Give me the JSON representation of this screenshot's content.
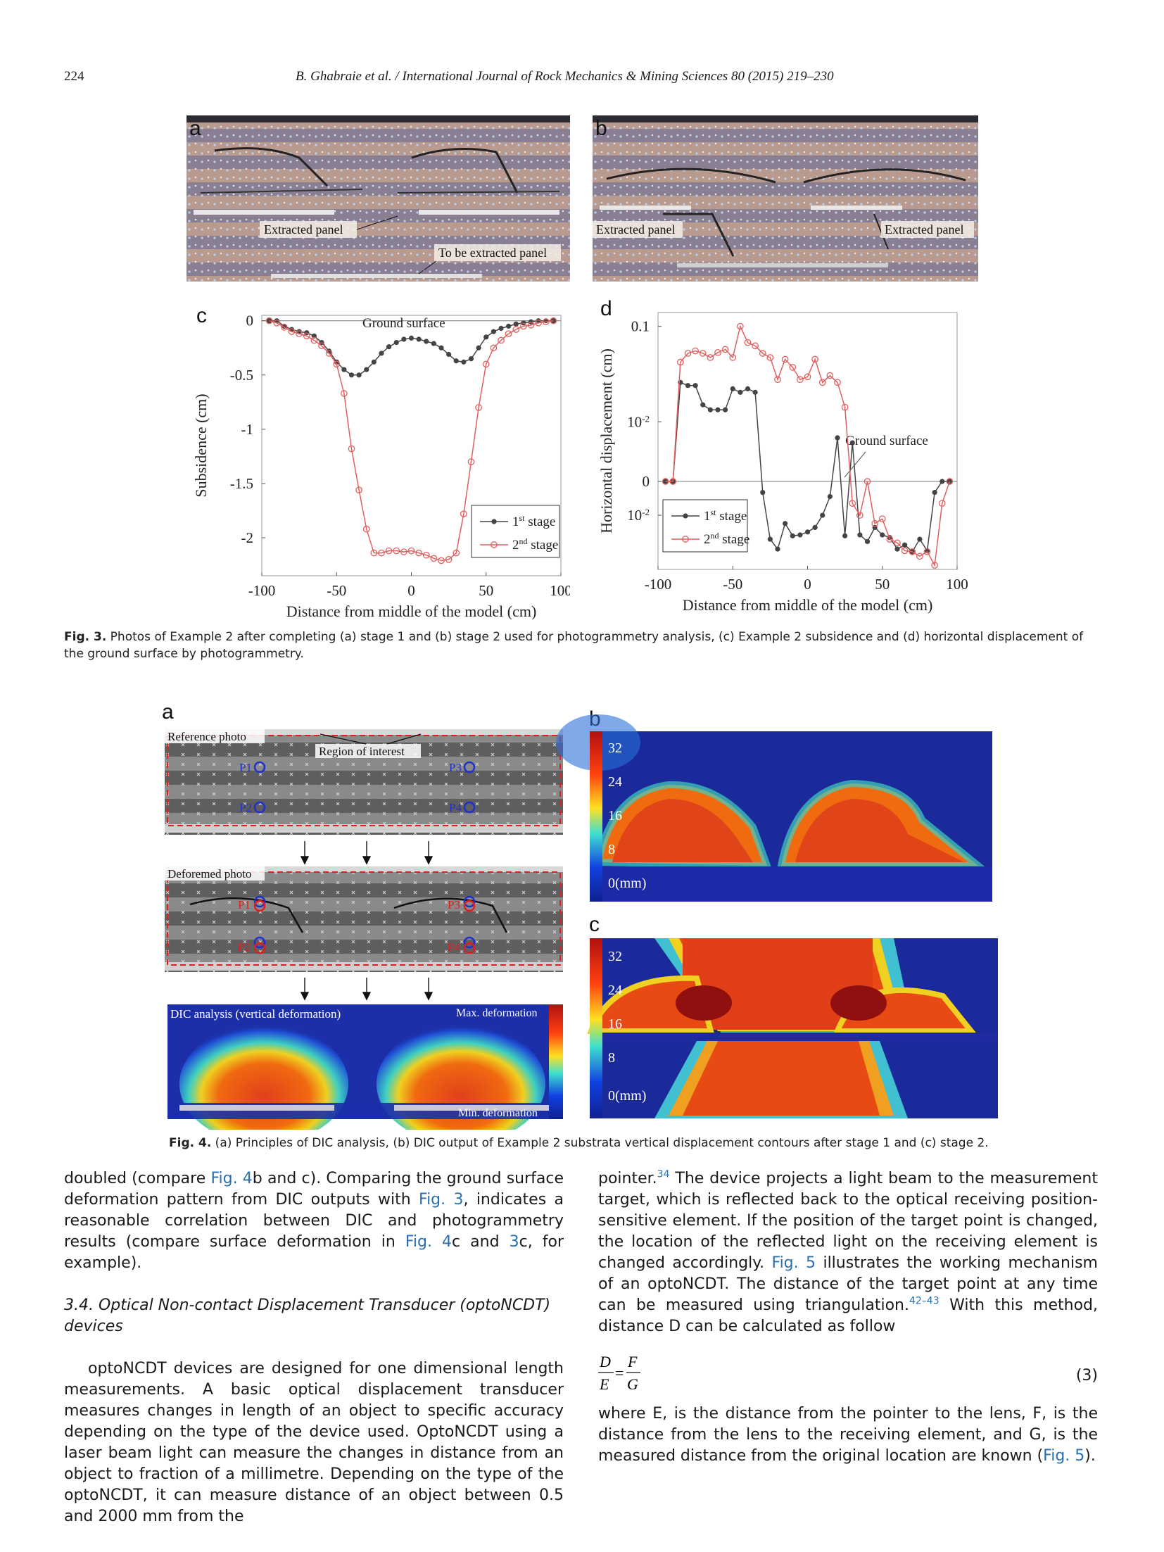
{
  "header": {
    "page_number": "224",
    "citation": "B. Ghabraie et al. / International Journal of Rock Mechanics & Mining Sciences 80 (2015) 219–230"
  },
  "fig3": {
    "photo_a": {
      "letter": "a",
      "label_extracted": "Extracted panel",
      "label_to_be": "To be extracted panel"
    },
    "photo_b": {
      "letter": "b",
      "label_left": "Extracted panel",
      "label_right": "Extracted panel"
    },
    "caption_bold": "Fig. 3.",
    "caption_text": " Photos of Example 2 after completing (a) stage 1 and (b) stage 2 used for photogrammetry analysis, (c) Example 2 subsidence and (d) horizontal displacement of the ground surface by photogrammetry."
  },
  "chart_data": [
    {
      "type": "line",
      "panel": "c",
      "xlabel": "Distance from middle of the model (cm)",
      "ylabel": "Subsidence (cm)",
      "xlim": [
        -100,
        100
      ],
      "ylim": [
        -2.35,
        0.05
      ],
      "xticks": [
        "-100",
        "-50",
        "0",
        "50",
        "100"
      ],
      "yticks": [
        "0",
        "-0.5",
        "-1",
        "-1.5",
        "-2"
      ],
      "annotation": "Ground surface",
      "legend": "bottom-right",
      "series": [
        {
          "name": "1st stage",
          "color": "#444444",
          "marker": "filled-circle",
          "x": [
            -95,
            -90,
            -85,
            -80,
            -75,
            -70,
            -65,
            -60,
            -55,
            -50,
            -45,
            -40,
            -35,
            -30,
            -25,
            -20,
            -15,
            -10,
            -5,
            0,
            5,
            10,
            15,
            20,
            25,
            30,
            35,
            40,
            45,
            50,
            55,
            60,
            65,
            70,
            75,
            80,
            85,
            90,
            95
          ],
          "y": [
            0,
            0,
            -0.05,
            -0.08,
            -0.1,
            -0.11,
            -0.14,
            -0.2,
            -0.28,
            -0.38,
            -0.45,
            -0.5,
            -0.5,
            -0.45,
            -0.38,
            -0.3,
            -0.24,
            -0.2,
            -0.17,
            -0.16,
            -0.17,
            -0.19,
            -0.21,
            -0.25,
            -0.31,
            -0.37,
            -0.38,
            -0.35,
            -0.25,
            -0.15,
            -0.1,
            -0.07,
            -0.05,
            -0.03,
            -0.02,
            -0.01,
            0,
            0,
            0
          ]
        },
        {
          "name": "2nd stage",
          "color": "#e06060",
          "marker": "open-circle",
          "x": [
            -95,
            -90,
            -85,
            -80,
            -75,
            -70,
            -65,
            -60,
            -55,
            -50,
            -45,
            -40,
            -35,
            -30,
            -25,
            -20,
            -15,
            -10,
            -5,
            0,
            5,
            10,
            15,
            20,
            25,
            30,
            35,
            40,
            45,
            50,
            55,
            60,
            65,
            70,
            75,
            80,
            85,
            90,
            95
          ],
          "y": [
            0,
            -0.02,
            -0.06,
            -0.1,
            -0.12,
            -0.14,
            -0.18,
            -0.23,
            -0.3,
            -0.4,
            -0.67,
            -1.18,
            -1.56,
            -1.92,
            -2.14,
            -2.14,
            -2.12,
            -2.12,
            -2.13,
            -2.12,
            -2.14,
            -2.16,
            -2.19,
            -2.21,
            -2.2,
            -2.14,
            -1.78,
            -1.3,
            -0.8,
            -0.4,
            -0.25,
            -0.18,
            -0.12,
            -0.08,
            -0.05,
            -0.04,
            -0.02,
            -0.01,
            0
          ]
        }
      ]
    },
    {
      "type": "line",
      "panel": "d",
      "xlabel": "Distance from middle of the model (cm)",
      "ylabel": "Horizontal displacement (cm)",
      "xlim": [
        -100,
        100
      ],
      "ylim": [
        -0.1,
        0.135
      ],
      "yscale": "symlog",
      "yticks": [
        "0.1",
        "10-2",
        "0",
        "10-2"
      ],
      "annotation": "Ground surface",
      "legend": "bottom-left",
      "series": [
        {
          "name": "1st stage",
          "color": "#444444",
          "marker": "filled-circle",
          "x": [
            -95,
            -90,
            -85,
            -80,
            -75,
            -70,
            -65,
            -60,
            -55,
            -50,
            -45,
            -40,
            -35,
            -30,
            -25,
            -20,
            -15,
            -10,
            -5,
            0,
            5,
            10,
            15,
            20,
            25,
            30,
            35,
            40,
            45,
            50,
            55,
            60,
            65,
            70,
            75,
            80,
            85,
            90,
            95
          ],
          "y": [
            0,
            0,
            0.028,
            0.026,
            0.026,
            0.016,
            0.014,
            0.014,
            0.014,
            0.024,
            0.022,
            0.024,
            0.022,
            -0.002,
            -0.03,
            -0.045,
            -0.015,
            -0.026,
            -0.025,
            -0.022,
            -0.018,
            -0.01,
            -0.003,
            0.006,
            -0.026,
            0.005,
            -0.025,
            -0.033,
            -0.018,
            -0.025,
            -0.028,
            -0.045,
            -0.038,
            -0.05,
            -0.03,
            -0.048,
            -0.002,
            0,
            0
          ]
        },
        {
          "name": "2nd stage",
          "color": "#e06060",
          "marker": "open-circle",
          "x": [
            -95,
            -90,
            -85,
            -80,
            -75,
            -70,
            -65,
            -60,
            -55,
            -50,
            -45,
            -40,
            -35,
            -30,
            -25,
            -20,
            -15,
            -10,
            -5,
            0,
            5,
            10,
            15,
            20,
            25,
            30,
            35,
            40,
            45,
            50,
            55,
            60,
            65,
            70,
            75,
            80,
            85,
            90,
            95
          ],
          "y": [
            0,
            0,
            0.045,
            0.055,
            0.058,
            0.055,
            0.05,
            0.056,
            0.06,
            0.05,
            0.1,
            0.07,
            0.065,
            0.055,
            0.05,
            0.03,
            0.048,
            0.04,
            0.03,
            0.032,
            0.048,
            0.028,
            0.033,
            0.028,
            0.015,
            -0.005,
            -0.01,
            0,
            -0.015,
            -0.012,
            -0.03,
            -0.035,
            -0.048,
            -0.05,
            -0.06,
            -0.05,
            -0.085,
            -0.005,
            0
          ]
        }
      ]
    }
  ],
  "fig4": {
    "panel_a": {
      "letter": "a",
      "reference_label": "Reference photo",
      "region_label": "Region of interest",
      "deformed_label": "Deforemed photo",
      "points": [
        "P1",
        "P2",
        "P3",
        "P4"
      ],
      "dic_label": "DIC analysis (vertical deformation)",
      "max_label": "Max. deformation",
      "min_label": "Min. deformation"
    },
    "panel_b": {
      "letter": "b",
      "scale": [
        "32",
        "24",
        "16",
        "8",
        "0(mm)"
      ]
    },
    "panel_c": {
      "letter": "c",
      "scale": [
        "32",
        "24",
        "16",
        "8",
        "0(mm)"
      ]
    },
    "caption_bold": "Fig. 4.",
    "caption_text": " (a) Principles of DIC analysis, (b) DIC output of Example 2 substrata vertical displacement contours after stage 1 and (c) stage 2."
  },
  "body": {
    "left_para1_a": "doubled (compare ",
    "left_para1_link1": "Fig. 4",
    "left_para1_b": "b and c). Comparing the ground surface deformation pattern from DIC outputs with ",
    "left_para1_link2": "Fig. 3",
    "left_para1_c": ", indicates a reasonable correlation between DIC and photogrammetry results (compare surface deformation in ",
    "left_para1_link3": "Fig. 4",
    "left_para1_d": "c and ",
    "left_para1_link4": "3",
    "left_para1_e": "c, for example).",
    "section_heading": "3.4. Optical Non-contact Displacement Transducer (optoNCDT) devices",
    "left_para2": "optoNCDT devices are designed for one dimensional length measurements. A basic optical displacement transducer measures changes in length of an object to specific accuracy depending on the type of the device used. OptoNCDT using a laser beam light can measure the changes in distance from an object to fraction of a millimetre. Depending on the type of the optoNCDT, it can measure distance of an object between 0.5 and 2000 mm from the",
    "right_para1_a": "pointer.",
    "right_para1_sup1": "34",
    "right_para1_b": " The device projects a light beam to the measurement target, which is reflected back to the optical receiving position-sensitive element. If the position of the target point is changed, the location of the reflected light on the receiving element is changed accordingly. ",
    "right_para1_link1": "Fig. 5",
    "right_para1_c": " illustrates the working mechanism of an optoNCDT. The distance of the target point at any time can be measured using triangulation.",
    "right_para1_sup2": "42–43",
    "right_para1_d": " With this method, distance D can be calculated as follow",
    "equation_number": "(3)",
    "right_para2_a": "where E, is the distance from the pointer to the lens, F, is the distance from the lens to the receiving element, and G, is the measured distance from the original location are known (",
    "right_para2_link": "Fig. 5",
    "right_para2_b": ")."
  }
}
